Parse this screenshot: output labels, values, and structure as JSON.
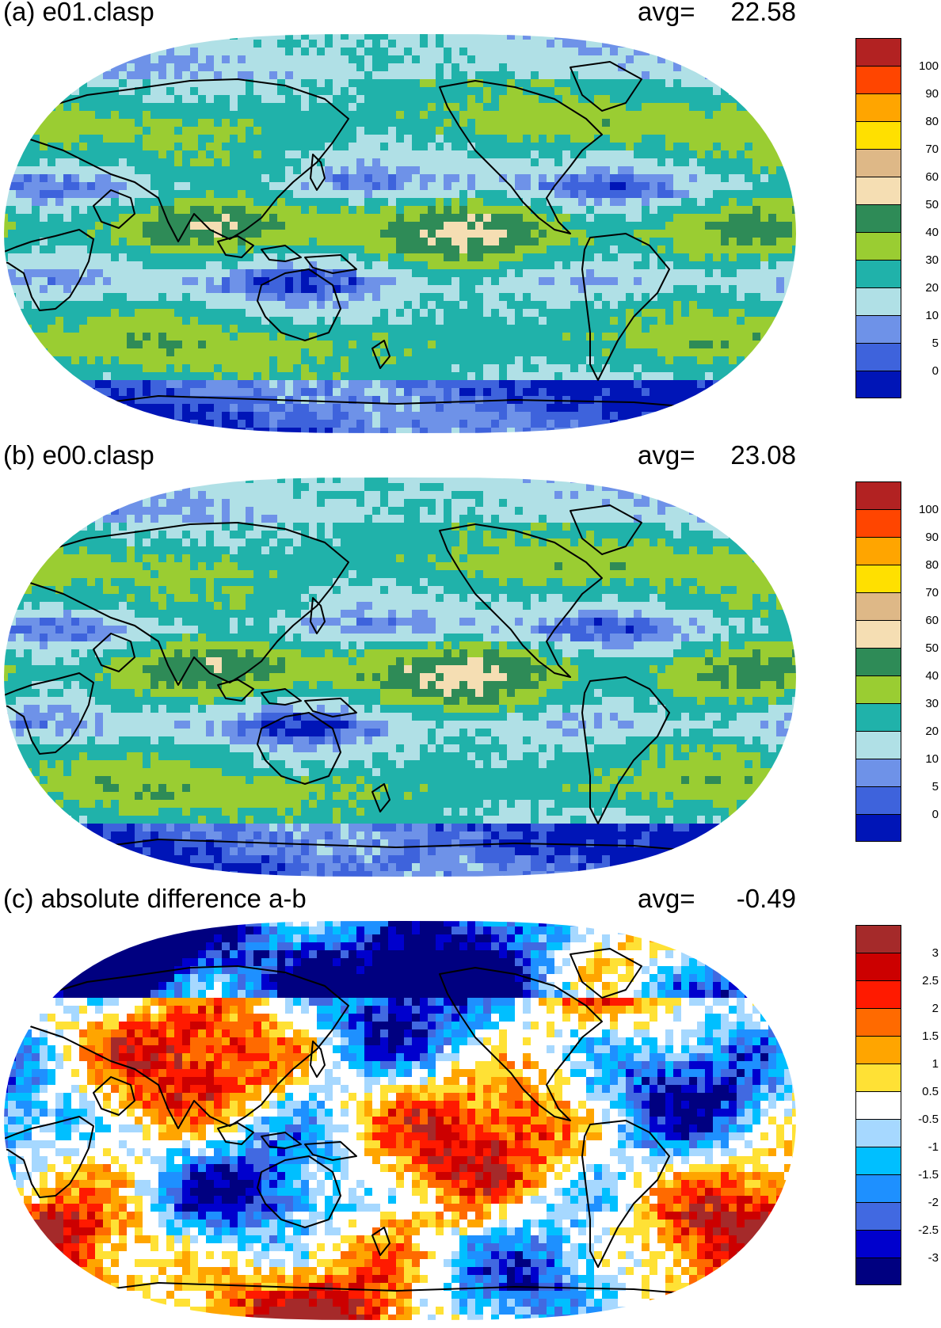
{
  "colors": {
    "coastline": "#000000",
    "ocean_bg": "#ffffff"
  },
  "panels": [
    {
      "id": "a",
      "title": "(a) e01.clasp",
      "avg_label": "avg=",
      "avg_value": "22.58",
      "scale": {
        "labels": [
          "0",
          "5",
          "10",
          "20",
          "30",
          "40",
          "50",
          "60",
          "70",
          "80",
          "90",
          "100"
        ],
        "colors": [
          "#0015b7",
          "#3e63dc",
          "#6e92e8",
          "#b0e0e6",
          "#20b2aa",
          "#9acd32",
          "#2e8b57",
          "#f5deb3",
          "#deb887",
          "#ffe000",
          "#ffa500",
          "#ff4500",
          "#b22222"
        ]
      }
    },
    {
      "id": "b",
      "title": "(b) e00.clasp",
      "avg_label": "avg=",
      "avg_value": "23.08",
      "scale": {
        "labels": [
          "0",
          "5",
          "10",
          "20",
          "30",
          "40",
          "50",
          "60",
          "70",
          "80",
          "90",
          "100"
        ],
        "colors": [
          "#0015b7",
          "#3e63dc",
          "#6e92e8",
          "#b0e0e6",
          "#20b2aa",
          "#9acd32",
          "#2e8b57",
          "#f5deb3",
          "#deb887",
          "#ffe000",
          "#ffa500",
          "#ff4500",
          "#b22222"
        ]
      }
    },
    {
      "id": "c",
      "title": "(c) absolute difference a-b",
      "avg_label": "avg=",
      "avg_value": "-0.49",
      "scale": {
        "labels": [
          "-3",
          "-2.5",
          "-2",
          "-1.5",
          "-1",
          "-0.5",
          "0.5",
          "1",
          "1.5",
          "2",
          "2.5",
          "3"
        ],
        "colors": [
          "#000080",
          "#0000cd",
          "#4169e1",
          "#1e90ff",
          "#00bfff",
          "#a6d8ff",
          "#ffffff",
          "#ffe135",
          "#ffa500",
          "#ff6a00",
          "#ff1a00",
          "#cc0000",
          "#a52a2a"
        ]
      }
    }
  ]
}
